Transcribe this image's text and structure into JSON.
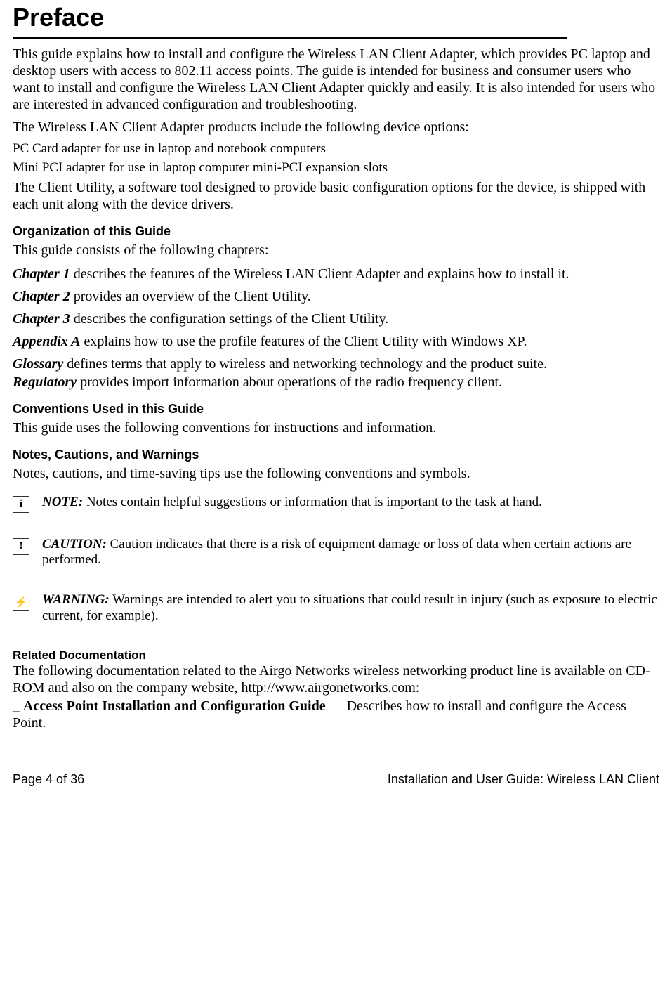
{
  "title": "Preface",
  "intro_para": "This guide explains how to install and configure the Wireless LAN Client Adapter, which provides PC laptop and desktop users with access to 802.11 access points. The guide is intended for business and consumer users who want to install and configure the Wireless LAN Client Adapter quickly and easily. It is also intended for users who are interested in advanced configuration and troubleshooting.",
  "products_intro": "The Wireless LAN Client Adapter products include the following device options:",
  "product_1": "PC Card adapter for use in laptop and notebook computers",
  "product_2": "Mini PCI adapter for use in laptop computer mini-PCI expansion slots",
  "utility_para": "The Client Utility, a software tool designed to provide basic configuration options for the device, is shipped with each unit along with the device drivers.",
  "org_header": "Organization of this Guide",
  "org_intro": "This guide consists of the following chapters:",
  "chapters": {
    "ch1_label": "Chapter 1",
    "ch1_text": " describes the features of the Wireless LAN Client Adapter and explains how to install it.",
    "ch2_label": "Chapter 2",
    "ch2_text": " provides an overview of the Client Utility.",
    "ch3_label": "Chapter 3",
    "ch3_text": " describes the configuration settings of the Client Utility.",
    "appA_label": "Appendix A",
    "appA_text": " explains how to use the profile features of the Client Utility with Windows XP.",
    "gloss_label": "Glossary",
    "gloss_text": " defines terms that apply to wireless and networking technology and the product suite.",
    "reg_label": "Regulatory",
    "reg_text": " provides import information about operations of the radio frequency client."
  },
  "conv_header": "Conventions Used in this Guide",
  "conv_intro": "This guide uses the following conventions for instructions and information.",
  "ncw_header": "Notes, Cautions, and Warnings",
  "ncw_intro": "Notes, cautions, and time-saving tips use the following conventions and symbols.",
  "note": {
    "icon_glyph": "i",
    "label": "NOTE:",
    "text": " Notes contain helpful suggestions or information that is important to the task at hand."
  },
  "caution": {
    "icon_glyph": "!",
    "label": "CAUTION:",
    "text": " Caution indicates that there is a risk of equipment damage or loss of data when certain actions are performed."
  },
  "warning": {
    "icon_glyph": "⚡",
    "label": "WARNING:",
    "text": " Warnings are intended to alert you to situations that could result in injury (such as exposure to electric current, for example)."
  },
  "related_header": "Related Documentation",
  "related_intro": "The following documentation related to the Airgo Networks wireless networking product line is available on CD-ROM and also on the company website, http://www.airgonetworks.com:",
  "related_item_prefix": "_ ",
  "related_item_label": "Access Point Installation and Configuration Guide",
  "related_item_text": " — Describes how to install and configure the Access Point.",
  "footer_left": "Page 4 of 36",
  "footer_right": "Installation and User Guide: Wireless LAN Client"
}
